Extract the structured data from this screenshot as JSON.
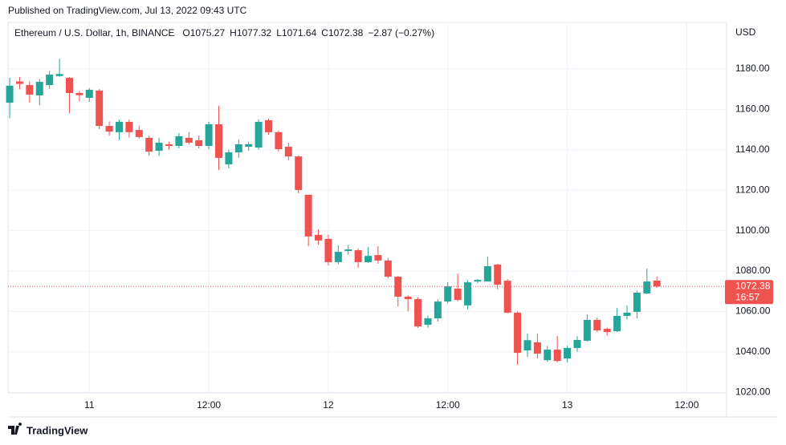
{
  "header": {
    "published": "Published on TradingView.com, Jul 13, 2022 09:43 UTC"
  },
  "footer": {
    "brand": "TradingView"
  },
  "chart_data": {
    "type": "candlestick",
    "title": "Ethereum / U.S. Dollar, 1h, BINANCE",
    "legend": [
      {
        "key": "O",
        "value": "1075.27"
      },
      {
        "key": "H",
        "value": "1077.32"
      },
      {
        "key": "L",
        "value": "1071.64"
      },
      {
        "key": "C",
        "value": "1072.38"
      }
    ],
    "change": "−2.87 (−0.27%)",
    "currency": "USD",
    "countdown": "16:57",
    "up_color": "#26a69a",
    "down_color": "#ef5350",
    "x": [
      "2022-07-10T16:00",
      "2022-07-10T17:00",
      "2022-07-10T18:00",
      "2022-07-10T19:00",
      "2022-07-10T20:00",
      "2022-07-10T21:00",
      "2022-07-10T22:00",
      "2022-07-10T23:00",
      "2022-07-11T00:00",
      "2022-07-11T01:00",
      "2022-07-11T02:00",
      "2022-07-11T03:00",
      "2022-07-11T04:00",
      "2022-07-11T05:00",
      "2022-07-11T06:00",
      "2022-07-11T07:00",
      "2022-07-11T08:00",
      "2022-07-11T09:00",
      "2022-07-11T10:00",
      "2022-07-11T11:00",
      "2022-07-11T12:00",
      "2022-07-11T13:00",
      "2022-07-11T14:00",
      "2022-07-11T15:00",
      "2022-07-11T16:00",
      "2022-07-11T17:00",
      "2022-07-11T18:00",
      "2022-07-11T19:00",
      "2022-07-11T20:00",
      "2022-07-11T21:00",
      "2022-07-11T22:00",
      "2022-07-11T23:00",
      "2022-07-12T00:00",
      "2022-07-12T01:00",
      "2022-07-12T02:00",
      "2022-07-12T03:00",
      "2022-07-12T04:00",
      "2022-07-12T05:00",
      "2022-07-12T06:00",
      "2022-07-12T07:00",
      "2022-07-12T08:00",
      "2022-07-12T09:00",
      "2022-07-12T10:00",
      "2022-07-12T11:00",
      "2022-07-12T12:00",
      "2022-07-12T13:00",
      "2022-07-12T14:00",
      "2022-07-12T15:00",
      "2022-07-12T16:00",
      "2022-07-12T17:00",
      "2022-07-12T18:00",
      "2022-07-12T19:00",
      "2022-07-12T20:00",
      "2022-07-12T21:00",
      "2022-07-12T22:00",
      "2022-07-12T23:00",
      "2022-07-13T00:00",
      "2022-07-13T01:00",
      "2022-07-13T02:00",
      "2022-07-13T03:00",
      "2022-07-13T04:00",
      "2022-07-13T05:00",
      "2022-07-13T06:00",
      "2022-07-13T07:00",
      "2022-07-13T08:00",
      "2022-07-13T09:00"
    ],
    "open": [
      1163.3,
      1173.8,
      1172,
      1166.9,
      1172,
      1176.5,
      1175.6,
      1168.1,
      1165.7,
      1169.3,
      1151.8,
      1148.7,
      1153.8,
      1149.8,
      1145.9,
      1139.5,
      1142.7,
      1141.9,
      1145.9,
      1144.7,
      1141.9,
      1152.6,
      1132.8,
      1138.7,
      1141.5,
      1141.1,
      1154.6,
      1148.7,
      1141.5,
      1136.7,
      1117.7,
      1097.9,
      1095.9,
      1084.4,
      1089.9,
      1090.3,
      1084.4,
      1087.9,
      1085.2,
      1077.2,
      1067.3,
      1066.1,
      1053.4,
      1056.6,
      1064.9,
      1071.3,
      1063,
      1074.8,
      1074.8,
      1083.2,
      1075.2,
      1059.4,
      1040.7,
      1044.7,
      1035.9,
      1041.1,
      1036.7,
      1041.9,
      1045.5,
      1055.8,
      1051.4,
      1050.2,
      1057.8,
      1059.8,
      1068.9,
      1075.27
    ],
    "high": [
      1175.7,
      1176,
      1174,
      1175,
      1179,
      1185,
      1176,
      1169,
      1170.5,
      1170,
      1154,
      1155,
      1155,
      1151.8,
      1147,
      1146,
      1144,
      1148.3,
      1148.7,
      1147,
      1153.8,
      1161.7,
      1140,
      1145,
      1144,
      1155,
      1155.4,
      1149.5,
      1143.5,
      1137.1,
      1117.7,
      1100.6,
      1098,
      1092.7,
      1093,
      1091.1,
      1091.9,
      1092.3,
      1086.4,
      1077.5,
      1068,
      1067,
      1058,
      1066,
      1074.4,
      1078.8,
      1075.6,
      1076,
      1087.1,
      1083.6,
      1076,
      1060,
      1049,
      1049,
      1043,
      1047.8,
      1043,
      1047.8,
      1058.6,
      1057,
      1052,
      1061.7,
      1063,
      1070.4,
      1081.2,
      1077.32
    ],
    "low": [
      1155.6,
      1170,
      1163.3,
      1162,
      1170,
      1176,
      1158.2,
      1164,
      1163.7,
      1150.2,
      1147,
      1144.7,
      1146,
      1145.5,
      1137,
      1137,
      1140,
      1140.7,
      1142.7,
      1140.7,
      1140.3,
      1130,
      1130.8,
      1136,
      1139.5,
      1140,
      1147.4,
      1139,
      1134.8,
      1118.5,
      1092.3,
      1093.1,
      1082.8,
      1083.2,
      1088,
      1081.6,
      1084,
      1083.6,
      1076.4,
      1062.5,
      1060,
      1051.8,
      1052,
      1055,
      1064.1,
      1064.9,
      1061,
      1074,
      1074.8,
      1071,
      1059,
      1033.6,
      1037.5,
      1036.7,
      1035,
      1034.8,
      1034.8,
      1040,
      1045.1,
      1049.8,
      1048,
      1049.8,
      1056,
      1056.6,
      1068.5,
      1071.64
    ],
    "close": [
      1171.7,
      1172.6,
      1167.3,
      1173.6,
      1177.2,
      1177.5,
      1168.1,
      1167,
      1169.7,
      1151.8,
      1149,
      1153.8,
      1148.7,
      1146.3,
      1139.1,
      1143.5,
      1141.9,
      1146.7,
      1143.5,
      1141.9,
      1152.6,
      1136,
      1138.7,
      1142.7,
      1142.7,
      1153.8,
      1148.7,
      1140.3,
      1136.7,
      1120.1,
      1097.1,
      1095.1,
      1084.4,
      1089.5,
      1090.7,
      1084.4,
      1087.5,
      1085.2,
      1077.2,
      1067.3,
      1066.1,
      1052.6,
      1056.6,
      1064.9,
      1072.4,
      1065.7,
      1074.4,
      1075.6,
      1082.4,
      1073.2,
      1059.4,
      1039.5,
      1045.8,
      1039.1,
      1041.1,
      1035.5,
      1041.9,
      1045.9,
      1055.8,
      1050.6,
      1049.8,
      1057.8,
      1059.4,
      1069.3,
      1074.8,
      1072.38
    ],
    "xlim": [
      "2022-07-10T15:50",
      "2022-07-13T16:00"
    ],
    "xticks": [
      {
        "value": "2022-07-11T00:00",
        "label": "11"
      },
      {
        "value": "2022-07-11T12:00",
        "label": "12:00"
      },
      {
        "value": "2022-07-12T00:00",
        "label": "12"
      },
      {
        "value": "2022-07-12T12:00",
        "label": "12:00"
      },
      {
        "value": "2022-07-13T00:00",
        "label": "13"
      },
      {
        "value": "2022-07-13T12:00",
        "label": "12:00"
      }
    ],
    "ylim": [
      1019.7,
      1203
    ],
    "yticks": [
      {
        "value": 1020,
        "label": "1020.00"
      },
      {
        "value": 1040,
        "label": "1040.00"
      },
      {
        "value": 1060,
        "label": "1060.00"
      },
      {
        "value": 1080,
        "label": "1080.00"
      },
      {
        "value": 1100,
        "label": "1100.00"
      },
      {
        "value": 1120,
        "label": "1120.00"
      },
      {
        "value": 1140,
        "label": "1140.00"
      },
      {
        "value": 1160,
        "label": "1160.00"
      },
      {
        "value": 1180,
        "label": "1180.00"
      }
    ],
    "grid": true
  }
}
